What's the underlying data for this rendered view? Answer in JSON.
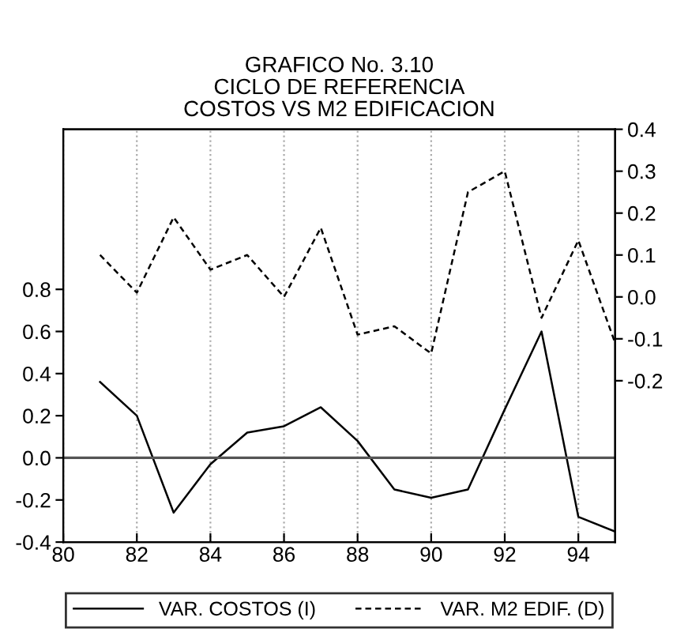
{
  "chart_data": {
    "type": "line",
    "title": "GRAFICO No. 3.10\nCICLO DE REFERENCIA\nCOSTOS VS M2 EDIFICACION",
    "x": [
      81,
      82,
      83,
      84,
      85,
      86,
      87,
      88,
      89,
      90,
      91,
      92,
      93,
      94,
      95
    ],
    "series": [
      {
        "name": "VAR. COSTOS (I)",
        "color": "#000000",
        "line_style": "solid",
        "values": [
          0.36,
          0.2,
          -0.26,
          -0.03,
          0.12,
          0.15,
          0.24,
          0.08,
          -0.15,
          -0.19,
          -0.15,
          0.23,
          0.6,
          -0.28,
          -0.35
        ]
      },
      {
        "name": "VAR. M2 EDIF. (D)",
        "color": "#000000",
        "line_style": "dashed",
        "axis": "y2",
        "values": [
          0.1,
          0.01,
          0.19,
          0.065,
          0.1,
          0.0,
          0.165,
          -0.09,
          -0.07,
          -0.135,
          0.25,
          0.3,
          -0.05,
          0.135,
          -0.11
        ]
      }
    ],
    "xlim": [
      80,
      95
    ],
    "xticks": [
      80,
      82,
      84,
      86,
      88,
      90,
      92,
      94
    ],
    "ylim": [
      -0.4,
      1.56
    ],
    "yticks": [
      {
        "value": -0.4,
        "label": "-0.4"
      },
      {
        "value": -0.2,
        "label": "-0.2"
      },
      {
        "value": 0.0,
        "label": "0.0"
      },
      {
        "value": 0.2,
        "label": "0.2"
      },
      {
        "value": 0.4,
        "label": "0.4"
      },
      {
        "value": 0.6,
        "label": "0.6"
      },
      {
        "value": 0.8,
        "label": "0.8"
      }
    ],
    "y2lim": [
      -0.585,
      0.4
    ],
    "y2ticks": [
      {
        "value": -0.2,
        "label": "-0.2"
      },
      {
        "value": -0.1,
        "label": "-0.1"
      },
      {
        "value": 0.0,
        "label": "0.0"
      },
      {
        "value": 0.1,
        "label": "0.1"
      },
      {
        "value": 0.2,
        "label": "0.2"
      },
      {
        "value": 0.3,
        "label": "0.3"
      },
      {
        "value": 0.4,
        "label": "0.4"
      }
    ],
    "ref_lines": [
      {
        "axis": "y",
        "value": 0,
        "color": "#555555"
      }
    ],
    "grid": "x",
    "legend": "bottom",
    "marker": "none"
  }
}
